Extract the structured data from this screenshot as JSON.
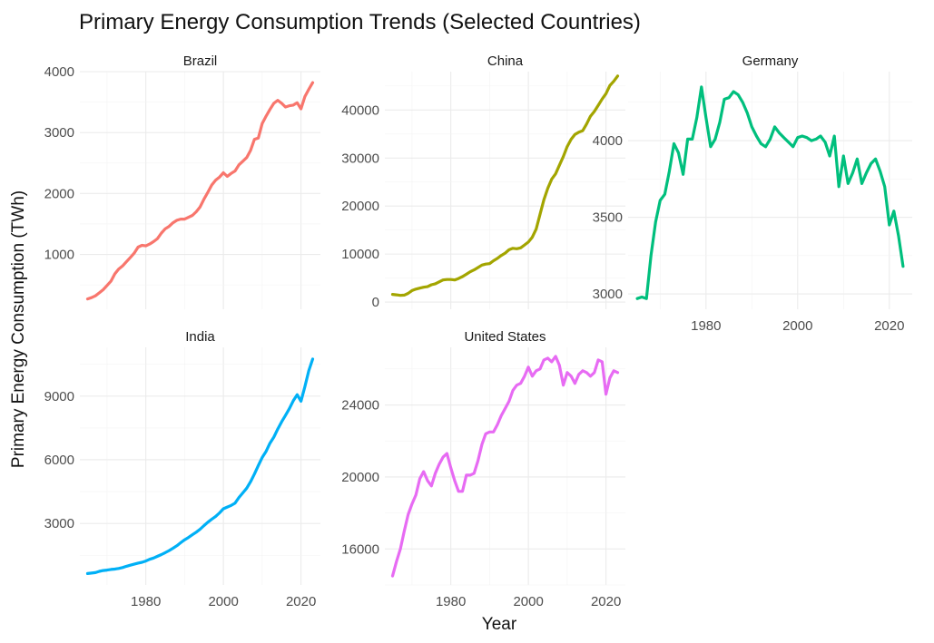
{
  "chart_data": {
    "type": "line",
    "title": "Primary Energy Consumption Trends (Selected Countries)",
    "xlabel": "Year",
    "ylabel": "Primary Energy Consumption (TWh)",
    "xlim": [
      1963,
      2025
    ],
    "x_ticks": [
      1980,
      2000,
      2020
    ],
    "grid": true,
    "legend": "none",
    "panels": [
      {
        "name": "Brazil",
        "color": "#F8766D",
        "ylim": [
          100,
          4000
        ],
        "y_ticks": [
          1000,
          2000,
          3000,
          4000
        ],
        "x": [
          1965,
          1966,
          1967,
          1968,
          1969,
          1970,
          1971,
          1972,
          1973,
          1974,
          1975,
          1976,
          1977,
          1978,
          1979,
          1980,
          1981,
          1982,
          1983,
          1984,
          1985,
          1986,
          1987,
          1988,
          1989,
          1990,
          1991,
          1992,
          1993,
          1994,
          1995,
          1996,
          1997,
          1998,
          1999,
          2000,
          2001,
          2002,
          2003,
          2004,
          2005,
          2006,
          2007,
          2008,
          2009,
          2010,
          2011,
          2012,
          2013,
          2014,
          2015,
          2016,
          2017,
          2018,
          2019,
          2020,
          2021,
          2022,
          2023
        ],
        "y": [
          270,
          290,
          320,
          370,
          420,
          490,
          560,
          680,
          760,
          810,
          880,
          950,
          1020,
          1120,
          1150,
          1140,
          1170,
          1210,
          1260,
          1350,
          1420,
          1460,
          1520,
          1560,
          1580,
          1580,
          1610,
          1640,
          1700,
          1780,
          1910,
          2020,
          2140,
          2220,
          2270,
          2340,
          2280,
          2330,
          2370,
          2470,
          2530,
          2590,
          2710,
          2890,
          2910,
          3150,
          3270,
          3380,
          3480,
          3530,
          3480,
          3420,
          3440,
          3450,
          3490,
          3390,
          3590,
          3710,
          3820
        ]
      },
      {
        "name": "China",
        "color": "#A3A500",
        "ylim": [
          -1500,
          48000
        ],
        "y_ticks": [
          0,
          10000,
          20000,
          30000,
          40000
        ],
        "x": [
          1965,
          1966,
          1967,
          1968,
          1969,
          1970,
          1971,
          1972,
          1973,
          1974,
          1975,
          1976,
          1977,
          1978,
          1979,
          1980,
          1981,
          1982,
          1983,
          1984,
          1985,
          1986,
          1987,
          1988,
          1989,
          1990,
          1991,
          1992,
          1993,
          1994,
          1995,
          1996,
          1997,
          1998,
          1999,
          2000,
          2001,
          2002,
          2003,
          2004,
          2005,
          2006,
          2007,
          2008,
          2009,
          2010,
          2011,
          2012,
          2013,
          2014,
          2015,
          2016,
          2017,
          2018,
          2019,
          2020,
          2021,
          2022,
          2023
        ],
        "y": [
          1600,
          1500,
          1400,
          1450,
          1800,
          2400,
          2700,
          2900,
          3100,
          3200,
          3600,
          3800,
          4200,
          4600,
          4700,
          4700,
          4600,
          4900,
          5300,
          5800,
          6300,
          6700,
          7200,
          7700,
          7900,
          8000,
          8600,
          9100,
          9700,
          10200,
          10900,
          11200,
          11100,
          11300,
          11900,
          12500,
          13500,
          15200,
          18300,
          21300,
          23700,
          25600,
          26700,
          28500,
          30300,
          32400,
          33900,
          34900,
          35400,
          35700,
          37100,
          38700,
          39700,
          41000,
          42300,
          43400,
          45100,
          46000,
          47100
        ]
      },
      {
        "name": "Germany",
        "color": "#00BF7D",
        "ylim": [
          2900,
          4450
        ],
        "y_ticks": [
          3000,
          3500,
          4000
        ],
        "x": [
          1965,
          1966,
          1967,
          1968,
          1969,
          1970,
          1971,
          1972,
          1973,
          1974,
          1975,
          1976,
          1977,
          1978,
          1979,
          1980,
          1981,
          1982,
          1983,
          1984,
          1985,
          1986,
          1987,
          1988,
          1989,
          1990,
          1991,
          1992,
          1993,
          1994,
          1995,
          1996,
          1997,
          1998,
          1999,
          2000,
          2001,
          2002,
          2003,
          2004,
          2005,
          2006,
          2007,
          2008,
          2009,
          2010,
          2011,
          2012,
          2013,
          2014,
          2015,
          2016,
          2017,
          2018,
          2019,
          2020,
          2021,
          2022,
          2023
        ],
        "y": [
          2970,
          2980,
          2970,
          3250,
          3470,
          3610,
          3650,
          3800,
          3980,
          3920,
          3780,
          4010,
          4010,
          4150,
          4350,
          4150,
          3960,
          4010,
          4120,
          4270,
          4280,
          4320,
          4300,
          4250,
          4180,
          4090,
          4030,
          3980,
          3960,
          4010,
          4090,
          4050,
          4020,
          3990,
          3960,
          4020,
          4030,
          4020,
          4000,
          4010,
          4030,
          3990,
          3900,
          4030,
          3700,
          3900,
          3720,
          3790,
          3880,
          3720,
          3790,
          3850,
          3880,
          3800,
          3700,
          3450,
          3540,
          3380,
          3180
        ]
      },
      {
        "name": "India",
        "color": "#00B0F6",
        "ylim": [
          100,
          11300
        ],
        "y_ticks": [
          3000,
          6000,
          9000
        ],
        "x": [
          1965,
          1966,
          1967,
          1968,
          1969,
          1970,
          1971,
          1972,
          1973,
          1974,
          1975,
          1976,
          1977,
          1978,
          1979,
          1980,
          1981,
          1982,
          1983,
          1984,
          1985,
          1986,
          1987,
          1988,
          1989,
          1990,
          1991,
          1992,
          1993,
          1994,
          1995,
          1996,
          1997,
          1998,
          1999,
          2000,
          2001,
          2002,
          2003,
          2004,
          2005,
          2006,
          2007,
          2008,
          2009,
          2010,
          2011,
          2012,
          2013,
          2014,
          2015,
          2016,
          2017,
          2018,
          2019,
          2020,
          2021,
          2022,
          2023
        ],
        "y": [
          640,
          660,
          680,
          740,
          780,
          800,
          830,
          850,
          880,
          920,
          980,
          1030,
          1080,
          1130,
          1170,
          1230,
          1310,
          1370,
          1450,
          1530,
          1620,
          1720,
          1830,
          1950,
          2090,
          2230,
          2340,
          2470,
          2590,
          2730,
          2900,
          3060,
          3200,
          3330,
          3500,
          3690,
          3770,
          3850,
          3960,
          4220,
          4440,
          4660,
          4970,
          5330,
          5730,
          6110,
          6400,
          6780,
          7070,
          7450,
          7790,
          8090,
          8410,
          8780,
          9070,
          8760,
          9450,
          10200,
          10750
        ]
      },
      {
        "name": "United States",
        "color": "#E76BF3",
        "ylim": [
          14000,
          27200
        ],
        "y_ticks": [
          16000,
          20000,
          24000
        ],
        "x": [
          1965,
          1966,
          1967,
          1968,
          1969,
          1970,
          1971,
          1972,
          1973,
          1974,
          1975,
          1976,
          1977,
          1978,
          1979,
          1980,
          1981,
          1982,
          1983,
          1984,
          1985,
          1986,
          1987,
          1988,
          1989,
          1990,
          1991,
          1992,
          1993,
          1994,
          1995,
          1996,
          1997,
          1998,
          1999,
          2000,
          2001,
          2002,
          2003,
          2004,
          2005,
          2006,
          2007,
          2008,
          2009,
          2010,
          2011,
          2012,
          2013,
          2014,
          2015,
          2016,
          2017,
          2018,
          2019,
          2020,
          2021,
          2022,
          2023
        ],
        "y": [
          14500,
          15300,
          16000,
          17000,
          17900,
          18500,
          19000,
          19900,
          20300,
          19800,
          19500,
          20200,
          20700,
          21100,
          21300,
          20500,
          19800,
          19200,
          19200,
          20100,
          20100,
          20200,
          20900,
          21800,
          22400,
          22500,
          22500,
          22900,
          23400,
          23800,
          24200,
          24800,
          25100,
          25200,
          25600,
          26100,
          25600,
          25900,
          26000,
          26500,
          26600,
          26400,
          26700,
          26200,
          25100,
          25800,
          25600,
          25200,
          25700,
          25900,
          25800,
          25600,
          25800,
          26500,
          26400,
          24600,
          25500,
          25900,
          25800
        ]
      }
    ]
  }
}
